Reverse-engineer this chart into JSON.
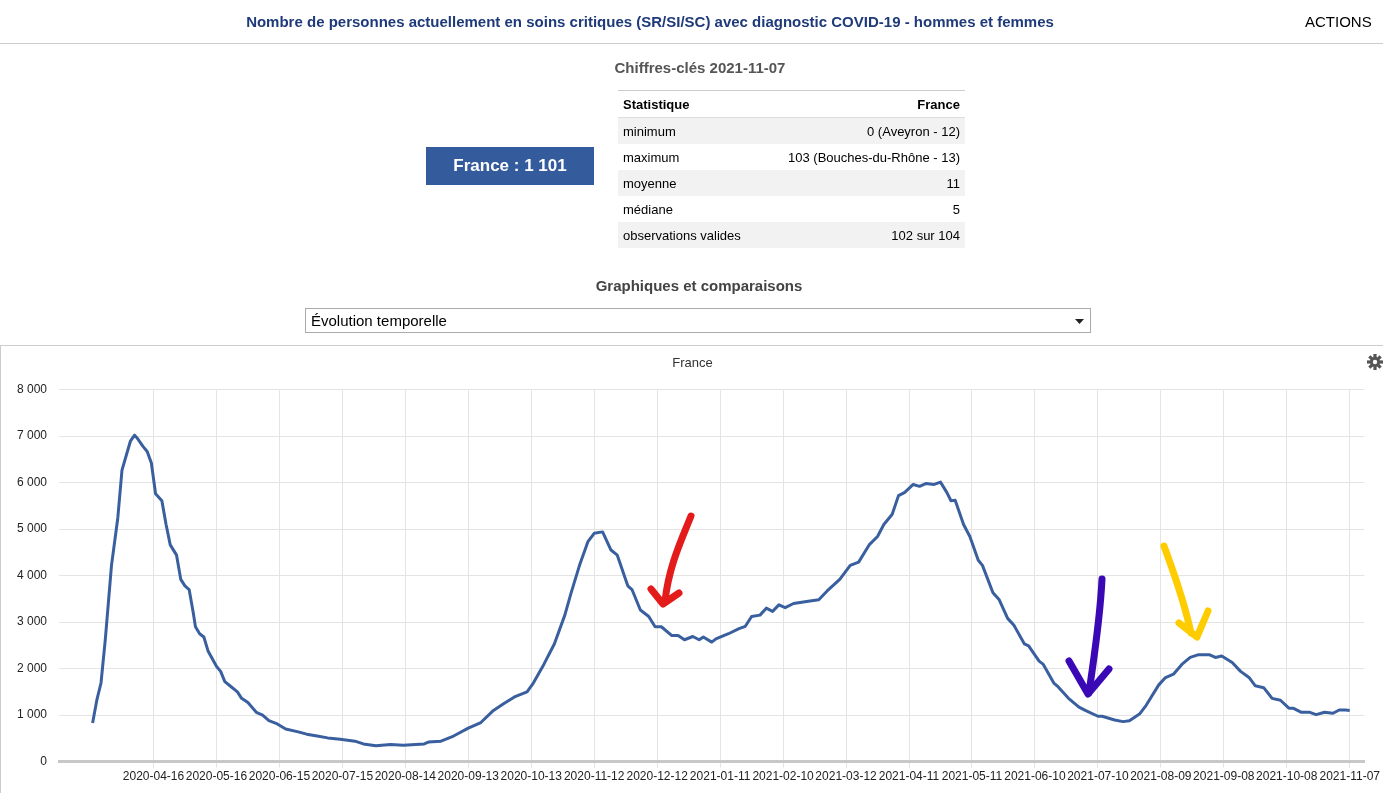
{
  "chart_data": [
    {
      "type": "other",
      "title": "Nombre de personnes actuellement en soins critiques (SR/SI/SC) avec diagnostic COVID-19 - hommes et femmes",
      "subtitle": "Chiffres-clés 2021-11-07",
      "annotations": [
        "ACTIONS",
        "France : 1 101",
        "Statistique",
        "France",
        "minimum",
        "0 (Aveyron - 12)",
        "maximum",
        "103 (Bouches-du-Rhône - 13)",
        "moyenne",
        "11",
        "médiane",
        "5",
        "observations valides",
        "102 sur 104",
        "Graphiques et comparaisons",
        "Évolution temporelle"
      ]
    },
    {
      "type": "line",
      "title": "France",
      "color": "#3a5f9f",
      "grid": true,
      "xlim": [
        "2020-03-02",
        "2021-11-14"
      ],
      "xticks": [
        "2020-04-16",
        "2020-05-16",
        "2020-06-15",
        "2020-07-15",
        "2020-08-14",
        "2020-09-13",
        "2020-10-13",
        "2020-11-12",
        "2020-12-12",
        "2021-01-11",
        "2021-02-10",
        "2021-03-12",
        "2021-04-11",
        "2021-05-11",
        "2021-06-10",
        "2021-07-10",
        "2021-08-09",
        "2021-09-08",
        "2021-10-08",
        "2021-11-07"
      ],
      "ylim": [
        0,
        8000
      ],
      "yticks": [
        0,
        {
          "value": 1000,
          "label": "1 000"
        },
        {
          "value": 2000,
          "label": "2 000"
        },
        {
          "value": 3000,
          "label": "3 000"
        },
        {
          "value": 4000,
          "label": "4 000"
        },
        {
          "value": 5000,
          "label": "5 000"
        },
        {
          "value": 6000,
          "label": "6 000"
        },
        {
          "value": 7000,
          "label": "7 000"
        },
        {
          "value": 8000,
          "label": "8 000"
        }
      ],
      "x": [
        "2020-03-18",
        "2020-03-20",
        "2020-03-22",
        "2020-03-24",
        "2020-03-27",
        "2020-03-30",
        "2020-04-01",
        "2020-04-05",
        "2020-04-07",
        "2020-04-08",
        "2020-04-11",
        "2020-04-13",
        "2020-04-15",
        "2020-04-17",
        "2020-04-20",
        "2020-04-22",
        "2020-04-24",
        "2020-04-27",
        "2020-04-29",
        "2020-05-01",
        "2020-05-03",
        "2020-05-05",
        "2020-05-06",
        "2020-05-08",
        "2020-05-10",
        "2020-05-12",
        "2020-05-16",
        "2020-05-18",
        "2020-05-20",
        "2020-05-23",
        "2020-05-26",
        "2020-05-28",
        "2020-05-31",
        "2020-06-04",
        "2020-06-07",
        "2020-06-10",
        "2020-06-14",
        "2020-06-18",
        "2020-06-24",
        "2020-06-28",
        "2020-07-03",
        "2020-07-08",
        "2020-07-14",
        "2020-07-21",
        "2020-07-25",
        "2020-07-31",
        "2020-08-07",
        "2020-08-13",
        "2020-08-23",
        "2020-08-25",
        "2020-08-31",
        "2020-09-06",
        "2020-09-13",
        "2020-09-19",
        "2020-09-25",
        "2020-09-30",
        "2020-10-05",
        "2020-10-11",
        "2020-10-14",
        "2020-10-19",
        "2020-10-24",
        "2020-10-29",
        "2020-11-01",
        "2020-11-05",
        "2020-11-09",
        "2020-11-12",
        "2020-11-16",
        "2020-11-20",
        "2020-11-23",
        "2020-11-28",
        "2020-11-30",
        "2020-12-04",
        "2020-12-08",
        "2020-12-11",
        "2020-12-14",
        "2020-12-19",
        "2020-12-22",
        "2020-12-25",
        "2020-12-29",
        "2021-01-01",
        "2021-01-03",
        "2021-01-07",
        "2021-01-09",
        "2021-01-15",
        "2021-01-20",
        "2021-01-23",
        "2021-01-26",
        "2021-01-30",
        "2021-02-02",
        "2021-02-05",
        "2021-02-08",
        "2021-02-11",
        "2021-02-15",
        "2021-02-22",
        "2021-02-27",
        "2021-03-03",
        "2021-03-09",
        "2021-03-14",
        "2021-03-18",
        "2021-03-23",
        "2021-03-27",
        "2021-03-30",
        "2021-04-03",
        "2021-04-06",
        "2021-04-09",
        "2021-04-13",
        "2021-04-16",
        "2021-04-19",
        "2021-04-23",
        "2021-04-26",
        "2021-04-29",
        "2021-05-01",
        "2021-05-03",
        "2021-05-07",
        "2021-05-10",
        "2021-05-14",
        "2021-05-16",
        "2021-05-21",
        "2021-05-24",
        "2021-05-28",
        "2021-05-31",
        "2021-06-05",
        "2021-06-07",
        "2021-06-12",
        "2021-06-14",
        "2021-06-19",
        "2021-06-21",
        "2021-06-26",
        "2021-07-01",
        "2021-07-04",
        "2021-07-10",
        "2021-07-12",
        "2021-07-18",
        "2021-07-22",
        "2021-07-25",
        "2021-07-30",
        "2021-08-02",
        "2021-08-08",
        "2021-08-11",
        "2021-08-15",
        "2021-08-19",
        "2021-08-23",
        "2021-08-27",
        "2021-09-01",
        "2021-09-04",
        "2021-09-07",
        "2021-09-12",
        "2021-09-16",
        "2021-09-20",
        "2021-09-23",
        "2021-09-27",
        "2021-10-01",
        "2021-10-05",
        "2021-10-09",
        "2021-10-11",
        "2021-10-15",
        "2021-10-19",
        "2021-10-22",
        "2021-10-26",
        "2021-10-30",
        "2021-11-02",
        "2021-11-05",
        "2021-11-07"
      ],
      "values": [
        830,
        1320,
        1690,
        2600,
        4220,
        5240,
        6270,
        6890,
        7020,
        6970,
        6780,
        6670,
        6420,
        5760,
        5610,
        5100,
        4660,
        4440,
        3920,
        3780,
        3700,
        3190,
        2900,
        2750,
        2680,
        2380,
        2050,
        1940,
        1720,
        1610,
        1500,
        1360,
        1270,
        1060,
        1000,
        880,
        810,
        700,
        640,
        590,
        550,
        510,
        480,
        440,
        380,
        340,
        370,
        350,
        380,
        420,
        440,
        550,
        720,
        840,
        1100,
        1250,
        1390,
        1500,
        1690,
        2090,
        2530,
        3150,
        3630,
        4220,
        4730,
        4910,
        4940,
        4550,
        4440,
        3780,
        3700,
        3260,
        3120,
        2900,
        2900,
        2710,
        2710,
        2620,
        2690,
        2620,
        2680,
        2570,
        2640,
        2750,
        2860,
        2910,
        3120,
        3150,
        3300,
        3230,
        3370,
        3310,
        3400,
        3450,
        3480,
        3670,
        3920,
        4220,
        4290,
        4660,
        4840,
        5100,
        5320,
        5720,
        5790,
        5960,
        5920,
        5980,
        5960,
        6010,
        5790,
        5610,
        5620,
        5100,
        4840,
        4330,
        4220,
        3630,
        3480,
        3080,
        2930,
        2530,
        2490,
        2160,
        2090,
        1690,
        1610,
        1360,
        1170,
        1100,
        975,
        975,
        895,
        860,
        880,
        1030,
        1210,
        1650,
        1800,
        1880,
        2090,
        2240,
        2300,
        2300,
        2240,
        2270,
        2130,
        1940,
        1810,
        1630,
        1590,
        1360,
        1320,
        1150,
        1150,
        1060,
        1060,
        1010,
        1060,
        1040,
        1110,
        1110,
        1100
      ]
    }
  ]
}
